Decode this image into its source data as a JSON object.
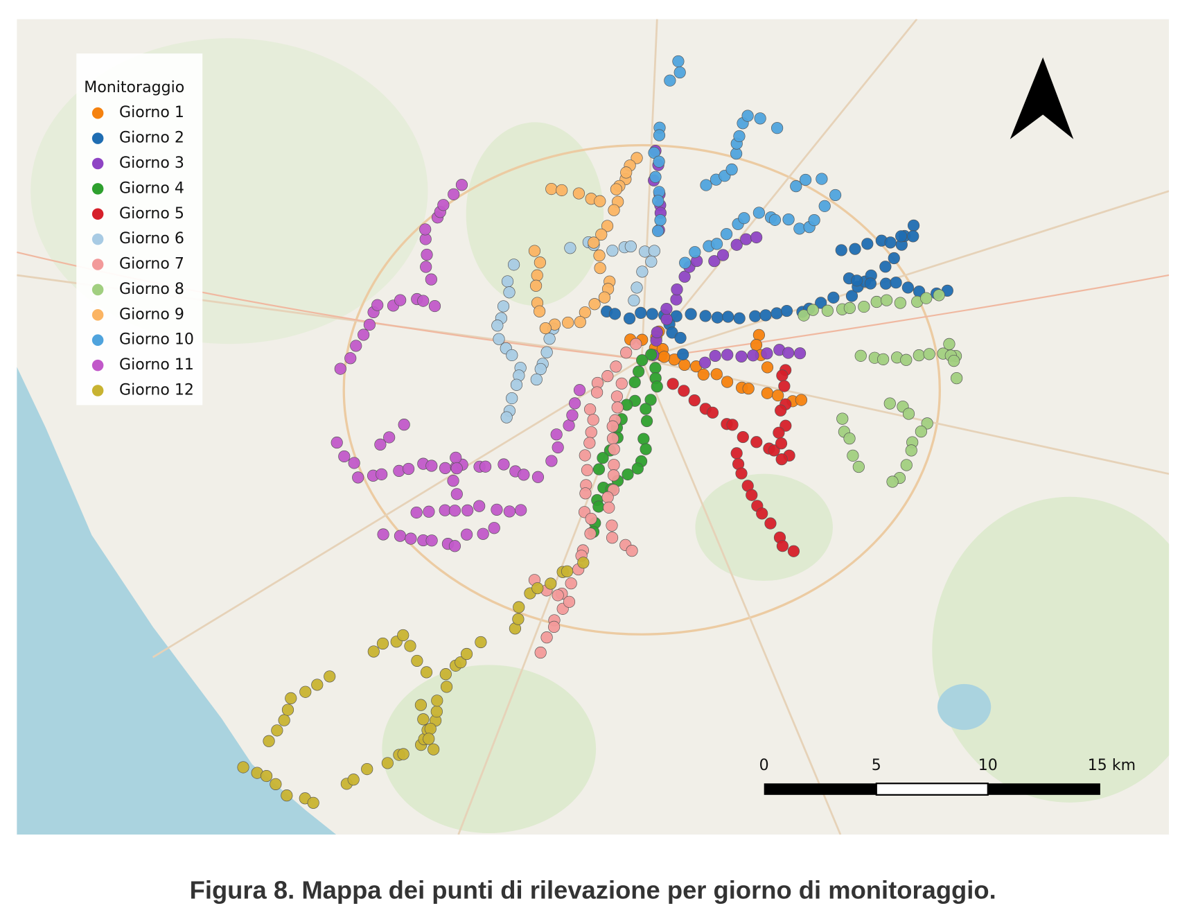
{
  "map": {
    "legend": {
      "title": "Monitoraggio",
      "items": [
        {
          "label": "Giorno 1",
          "color": "#f5820f"
        },
        {
          "label": "Giorno 2",
          "color": "#1f6db2"
        },
        {
          "label": "Giorno 3",
          "color": "#8e44c4"
        },
        {
          "label": "Giorno 4",
          "color": "#2ea02e"
        },
        {
          "label": "Giorno 5",
          "color": "#d6202a"
        },
        {
          "label": "Giorno 6",
          "color": "#a8cbe4"
        },
        {
          "label": "Giorno 7",
          "color": "#f29a9a"
        },
        {
          "label": "Giorno 8",
          "color": "#a1cf80"
        },
        {
          "label": "Giorno 9",
          "color": "#fbb463"
        },
        {
          "label": "Giorno 10",
          "color": "#4fa3dd"
        },
        {
          "label": "Giorno 11",
          "color": "#c158c9"
        },
        {
          "label": "Giorno 12",
          "color": "#c8b331"
        }
      ]
    },
    "scale_bar": {
      "labels": [
        "0",
        "5",
        "10",
        "15 km"
      ]
    }
  },
  "caption": "Figura 8. Mappa dei punti di rilevazione per giorno di monitoraggio."
}
